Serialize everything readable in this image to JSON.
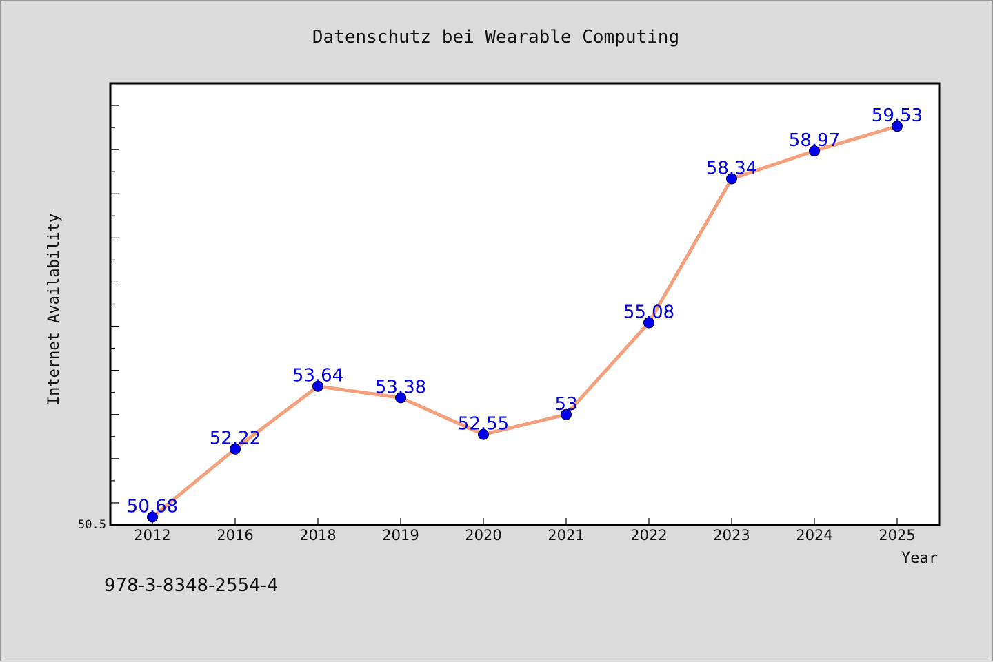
{
  "chart_data": {
    "type": "line",
    "title": "Datenschutz bei Wearable Computing",
    "xlabel": "Year",
    "ylabel": "Internet Availability",
    "categories": [
      "2012",
      "2016",
      "2018",
      "2019",
      "2020",
      "2021",
      "2022",
      "2023",
      "2024",
      "2025"
    ],
    "series": [
      {
        "values": [
          50.68,
          52.22,
          53.64,
          53.38,
          52.55,
          53.0,
          55.08,
          58.34,
          58.97,
          59.53
        ],
        "data_labels": [
          "50.68",
          "52.22",
          "53.64",
          "53.38",
          "52.55",
          "53",
          "55.08",
          "58.34",
          "58.97",
          "59.53"
        ]
      }
    ],
    "ylim": [
      50.5,
      60.5
    ],
    "ytick_labels": [
      "50.5"
    ],
    "grid": false,
    "legend": "none",
    "colors": {
      "line": "#f4a07c",
      "marker": "#0000ee",
      "data_label": "#0000ee",
      "plot_background": "#ffffff",
      "figure_background": "#dcdcdc"
    }
  },
  "footer_text": "978-3-8348-2554-4"
}
